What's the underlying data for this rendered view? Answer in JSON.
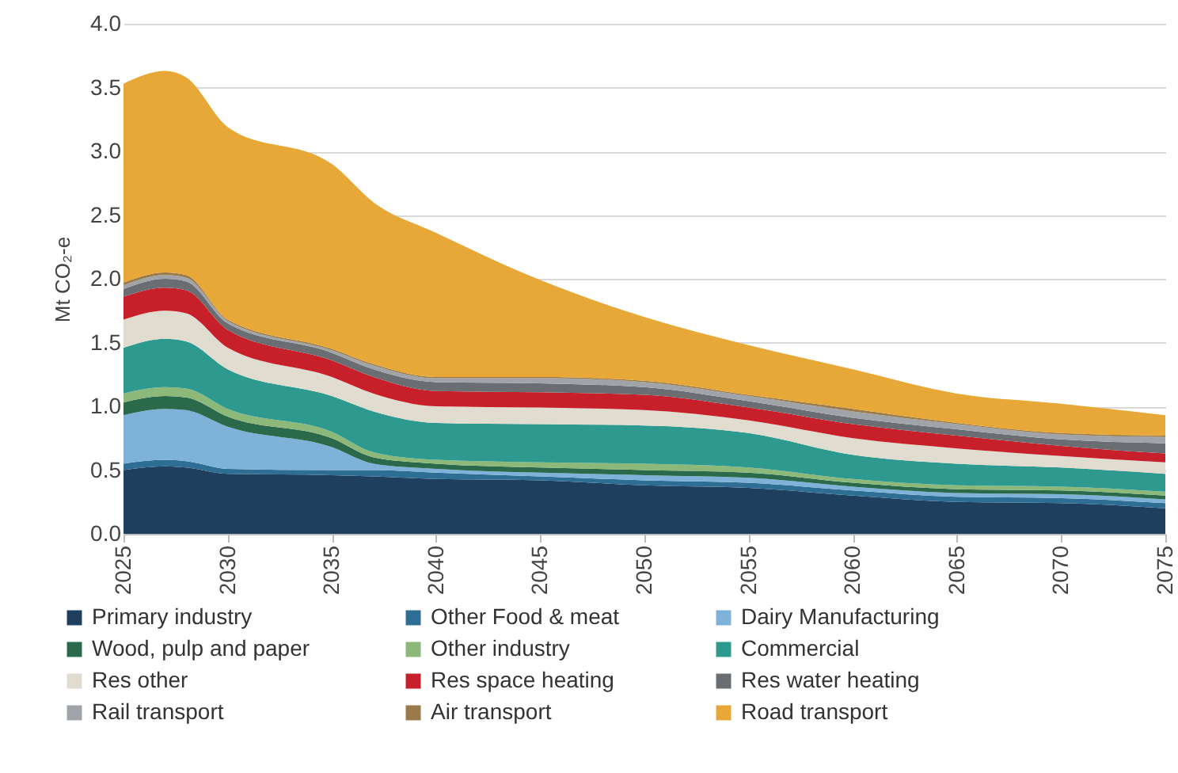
{
  "chart_data": {
    "type": "area",
    "stacked": true,
    "ylabel": "Mt CO₂-e",
    "x": [
      2025,
      2027,
      2028,
      2030,
      2035,
      2037,
      2040,
      2045,
      2050,
      2055,
      2060,
      2065,
      2070,
      2075
    ],
    "xlim": [
      2025,
      2075
    ],
    "xticks": [
      2025,
      2030,
      2035,
      2040,
      2045,
      2050,
      2055,
      2060,
      2065,
      2070,
      2075
    ],
    "ylim": [
      0,
      4
    ],
    "yticks": [
      {
        "value": 0,
        "label": "0.0"
      },
      {
        "value": 0.5,
        "label": "0.5"
      },
      {
        "value": 1,
        "label": "1.0"
      },
      {
        "value": 1.5,
        "label": "1.5"
      },
      {
        "value": 2,
        "label": "2.0"
      },
      {
        "value": 2.5,
        "label": "2.5"
      },
      {
        "value": 3,
        "label": "3.0"
      },
      {
        "value": 3.5,
        "label": "3.5"
      },
      {
        "value": 4,
        "label": "4.0"
      }
    ],
    "grid": "y",
    "legend": "bottom",
    "series": [
      {
        "name": "Primary industry",
        "color": "#1f3f5f",
        "values": [
          0.5,
          0.53,
          0.52,
          0.47,
          0.46,
          0.45,
          0.43,
          0.42,
          0.38,
          0.36,
          0.3,
          0.25,
          0.24,
          0.2
        ]
      },
      {
        "name": "Other Food & meat",
        "color": "#2e6e94",
        "values": [
          0.05,
          0.05,
          0.05,
          0.04,
          0.04,
          0.05,
          0.05,
          0.03,
          0.04,
          0.04,
          0.04,
          0.04,
          0.04,
          0.04
        ]
      },
      {
        "name": "Dairy Manufacturing",
        "color": "#7fb2d8",
        "values": [
          0.38,
          0.4,
          0.4,
          0.33,
          0.18,
          0.05,
          0.03,
          0.03,
          0.04,
          0.04,
          0.03,
          0.03,
          0.03,
          0.03
        ]
      },
      {
        "name": "Wood, pulp and paper",
        "color": "#2a6a4a",
        "values": [
          0.1,
          0.1,
          0.1,
          0.08,
          0.07,
          0.05,
          0.04,
          0.04,
          0.04,
          0.04,
          0.03,
          0.03,
          0.03,
          0.03
        ]
      },
      {
        "name": "Other industry",
        "color": "#8cb87a",
        "values": [
          0.07,
          0.07,
          0.07,
          0.06,
          0.05,
          0.04,
          0.03,
          0.04,
          0.05,
          0.04,
          0.03,
          0.03,
          0.03,
          0.03
        ]
      },
      {
        "name": "Commercial",
        "color": "#2e9a8f",
        "values": [
          0.36,
          0.38,
          0.37,
          0.31,
          0.28,
          0.32,
          0.29,
          0.3,
          0.3,
          0.27,
          0.19,
          0.17,
          0.15,
          0.14
        ]
      },
      {
        "name": "Res other",
        "color": "#e0dccf",
        "values": [
          0.22,
          0.22,
          0.22,
          0.17,
          0.15,
          0.14,
          0.13,
          0.13,
          0.12,
          0.1,
          0.13,
          0.12,
          0.09,
          0.09
        ]
      },
      {
        "name": "Res space heating",
        "color": "#c8202a",
        "values": [
          0.18,
          0.18,
          0.18,
          0.14,
          0.13,
          0.13,
          0.12,
          0.12,
          0.12,
          0.1,
          0.11,
          0.1,
          0.08,
          0.07
        ]
      },
      {
        "name": "Res water heating",
        "color": "#6a6e72",
        "values": [
          0.06,
          0.07,
          0.07,
          0.05,
          0.06,
          0.06,
          0.07,
          0.07,
          0.06,
          0.05,
          0.05,
          0.05,
          0.05,
          0.08
        ]
      },
      {
        "name": "Rail transport",
        "color": "#a0a4a8",
        "values": [
          0.03,
          0.03,
          0.03,
          0.02,
          0.02,
          0.03,
          0.03,
          0.04,
          0.04,
          0.04,
          0.05,
          0.04,
          0.04,
          0.05
        ]
      },
      {
        "name": "Air transport",
        "color": "#9a7a4a",
        "values": [
          0.02,
          0.02,
          0.02,
          0.01,
          0.01,
          0.01,
          0.01,
          0.01,
          0.01,
          0.01,
          0.02,
          0.01,
          0.01,
          0.01
        ]
      },
      {
        "name": "Road transport",
        "color": "#e8a838",
        "values": [
          1.56,
          1.58,
          1.55,
          1.51,
          1.45,
          1.27,
          1.13,
          0.76,
          0.5,
          0.39,
          0.31,
          0.23,
          0.23,
          0.16
        ]
      }
    ]
  }
}
